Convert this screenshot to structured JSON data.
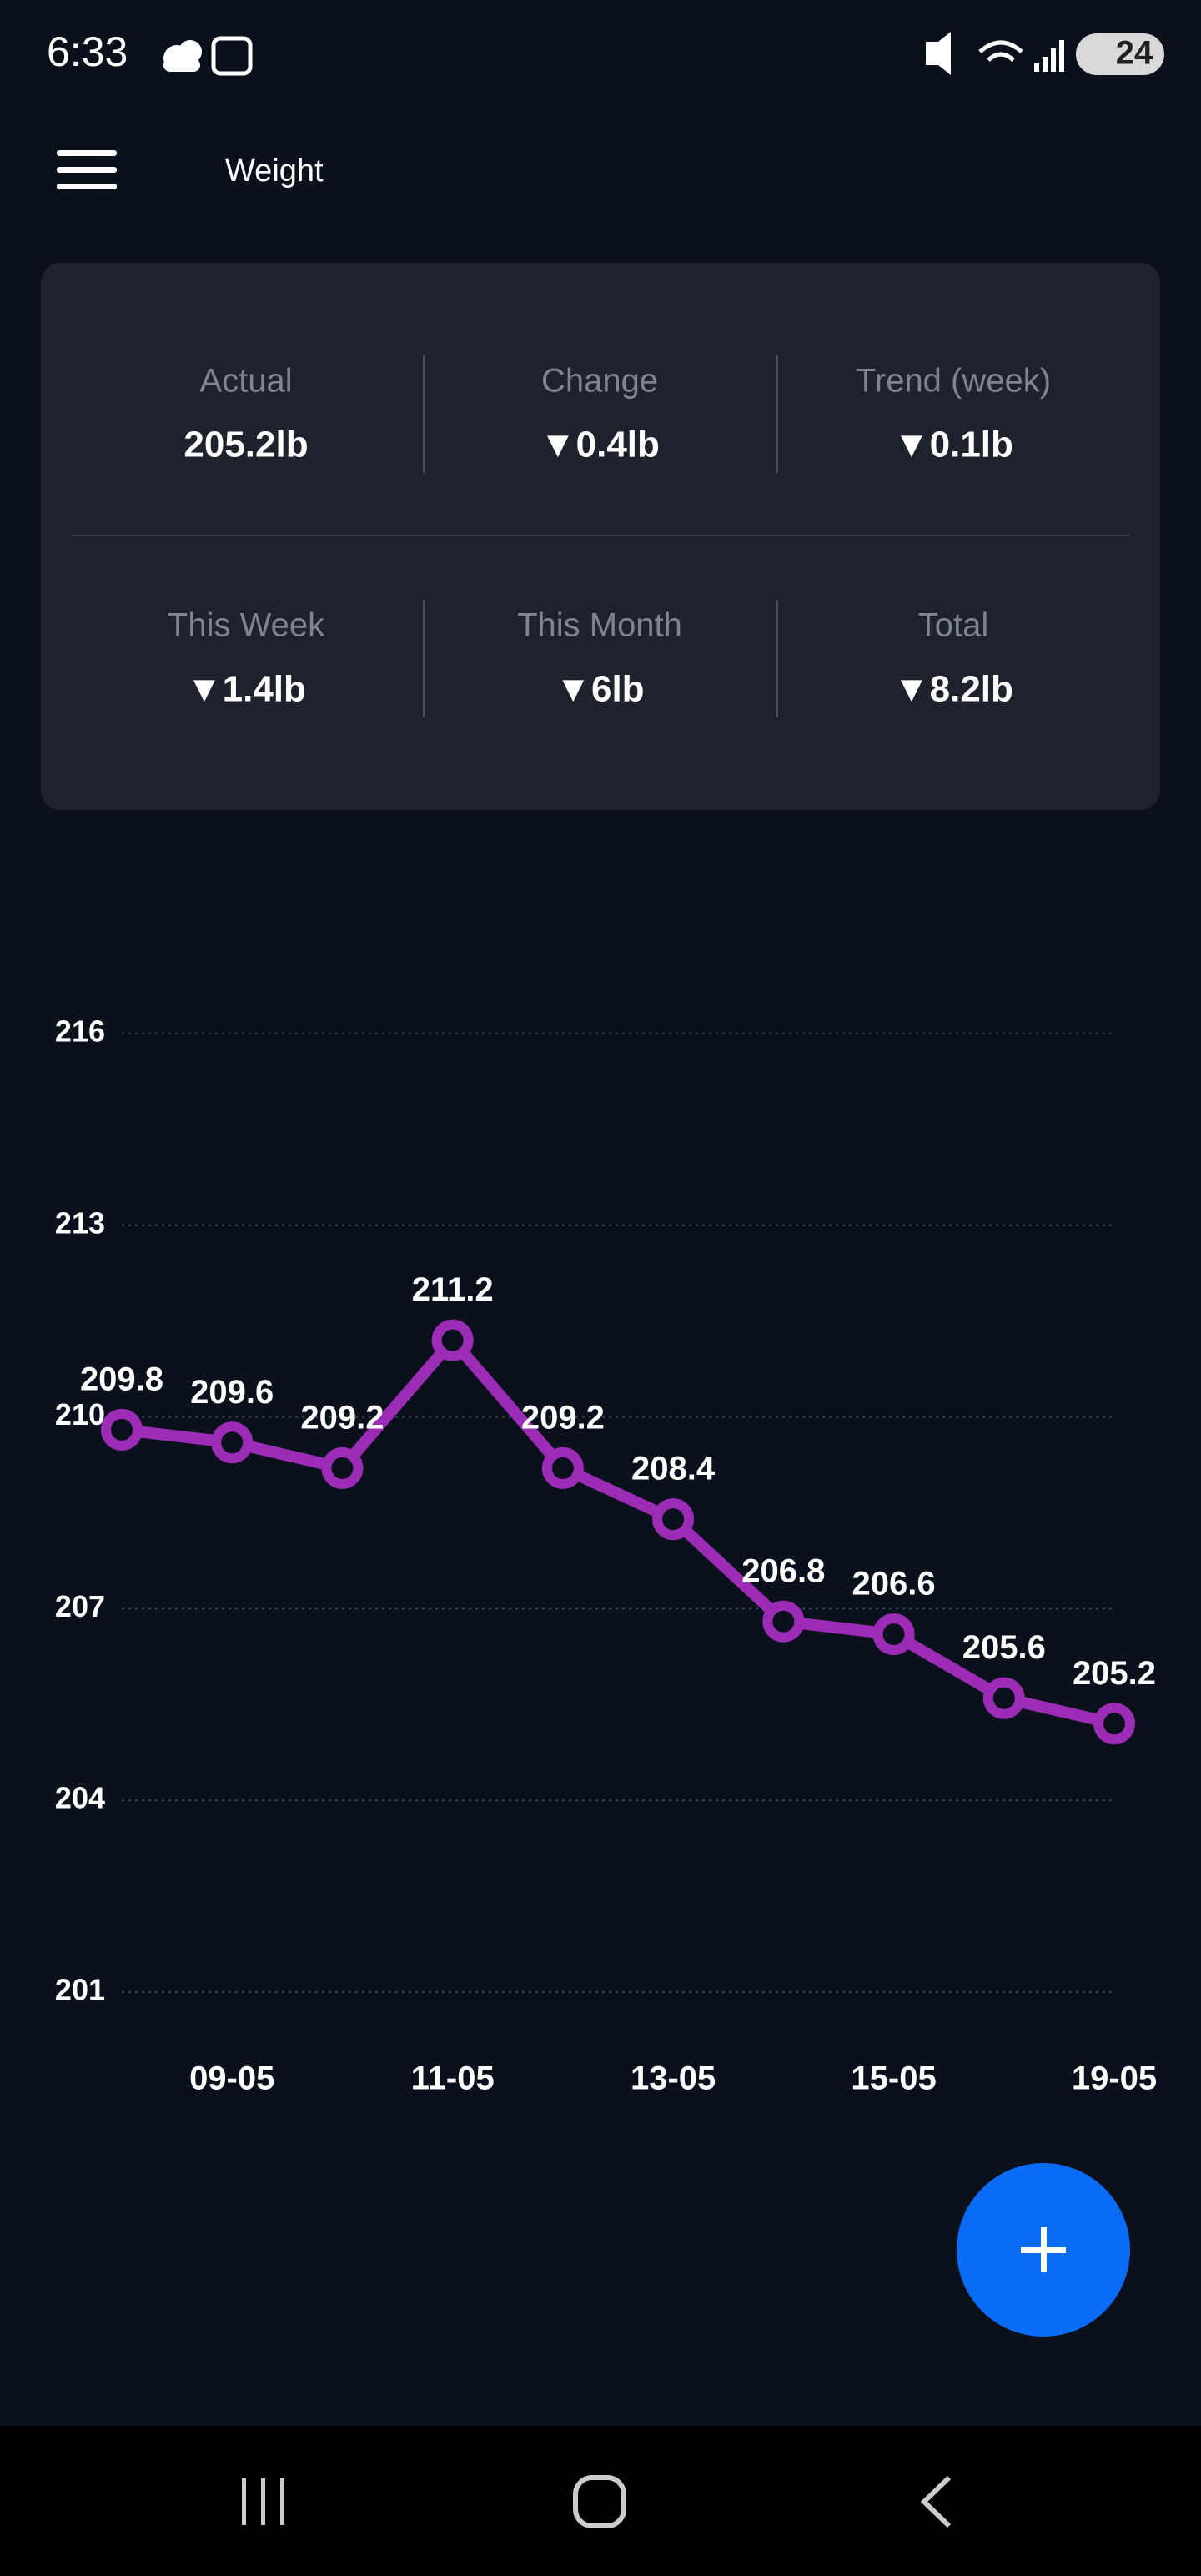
{
  "status_bar": {
    "time": "6:33",
    "battery": "24"
  },
  "header": {
    "title": "Weight"
  },
  "stats": [
    [
      {
        "label": "Actual",
        "value": "205.2lb"
      },
      {
        "label": "Change",
        "value": "▼0.4lb"
      },
      {
        "label": "Trend (week)",
        "value": "▼0.1lb"
      }
    ],
    [
      {
        "label": "This Week",
        "value": "▼1.4lb"
      },
      {
        "label": "This Month",
        "value": "▼6lb"
      },
      {
        "label": "Total",
        "value": "▼8.2lb"
      }
    ]
  ],
  "chart_data": {
    "type": "line",
    "categories": [
      null,
      "09-05",
      null,
      "11-05",
      null,
      "13-05",
      null,
      "15-05",
      null,
      "19-05"
    ],
    "values": [
      209.8,
      209.6,
      209.2,
      211.2,
      209.2,
      208.4,
      206.8,
      206.6,
      205.6,
      205.2
    ],
    "color": "#9c2bb5",
    "ylim": [
      201,
      216
    ],
    "yticks": [
      201,
      204,
      207,
      210,
      213,
      216
    ],
    "grid": true
  }
}
